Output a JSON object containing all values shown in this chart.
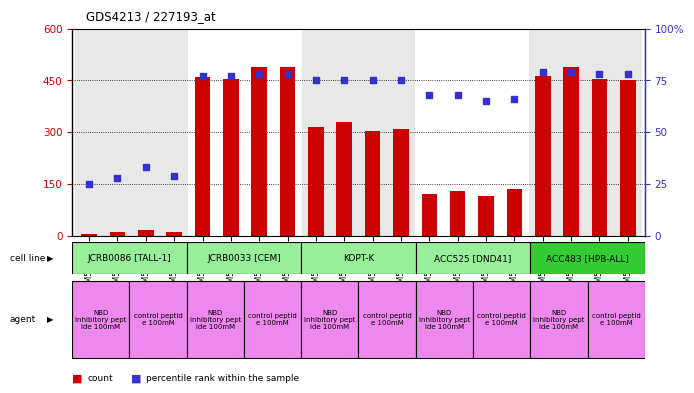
{
  "title": "GDS4213 / 227193_at",
  "categories": [
    "GSM518496",
    "GSM518497",
    "GSM518494",
    "GSM518495",
    "GSM542395",
    "GSM542396",
    "GSM542393",
    "GSM542394",
    "GSM542399",
    "GSM542400",
    "GSM542397",
    "GSM542398",
    "GSM542403",
    "GSM542404",
    "GSM542401",
    "GSM542402",
    "GSM542407",
    "GSM542408",
    "GSM542405",
    "GSM542406"
  ],
  "counts": [
    5,
    10,
    18,
    12,
    460,
    453,
    490,
    490,
    315,
    330,
    305,
    310,
    120,
    130,
    115,
    135,
    462,
    490,
    455,
    450
  ],
  "percentiles": [
    25,
    28,
    33,
    29,
    77,
    77,
    78,
    78,
    75,
    75,
    75,
    75,
    68,
    68,
    65,
    66,
    79,
    79,
    78,
    78
  ],
  "bar_color": "#cc0000",
  "dot_color": "#3333cc",
  "ylim_left": [
    0,
    600
  ],
  "ylim_right": [
    0,
    100
  ],
  "yticks_left": [
    0,
    150,
    300,
    450,
    600
  ],
  "yticks_right": [
    0,
    25,
    50,
    75,
    100
  ],
  "cell_lines": [
    {
      "label": "JCRB0086 [TALL-1]",
      "start": 0,
      "end": 4,
      "color": "#99ee99"
    },
    {
      "label": "JCRB0033 [CEM]",
      "start": 4,
      "end": 8,
      "color": "#99ee99"
    },
    {
      "label": "KOPT-K",
      "start": 8,
      "end": 12,
      "color": "#99ee99"
    },
    {
      "label": "ACC525 [DND41]",
      "start": 12,
      "end": 16,
      "color": "#99ee99"
    },
    {
      "label": "ACC483 [HPB-ALL]",
      "start": 16,
      "end": 20,
      "color": "#33cc33"
    }
  ],
  "agents": [
    {
      "label": "NBD\ninhibitory pept\nide 100mM",
      "start": 0,
      "end": 2,
      "color": "#ee88ee"
    },
    {
      "label": "control peptid\ne 100mM",
      "start": 2,
      "end": 4,
      "color": "#ee88ee"
    },
    {
      "label": "NBD\ninhibitory pept\nide 100mM",
      "start": 4,
      "end": 6,
      "color": "#ee88ee"
    },
    {
      "label": "control peptid\ne 100mM",
      "start": 6,
      "end": 8,
      "color": "#ee88ee"
    },
    {
      "label": "NBD\ninhibitory pept\nide 100mM",
      "start": 8,
      "end": 10,
      "color": "#ee88ee"
    },
    {
      "label": "control peptid\ne 100mM",
      "start": 10,
      "end": 12,
      "color": "#ee88ee"
    },
    {
      "label": "NBD\ninhibitory pept\nide 100mM",
      "start": 12,
      "end": 14,
      "color": "#ee88ee"
    },
    {
      "label": "control peptid\ne 100mM",
      "start": 14,
      "end": 16,
      "color": "#ee88ee"
    },
    {
      "label": "NBD\ninhibitory pept\nide 100mM",
      "start": 16,
      "end": 18,
      "color": "#ee88ee"
    },
    {
      "label": "control peptid\ne 100mM",
      "start": 18,
      "end": 20,
      "color": "#ee88ee"
    }
  ],
  "legend_count_color": "#cc0000",
  "legend_dot_color": "#3333cc"
}
